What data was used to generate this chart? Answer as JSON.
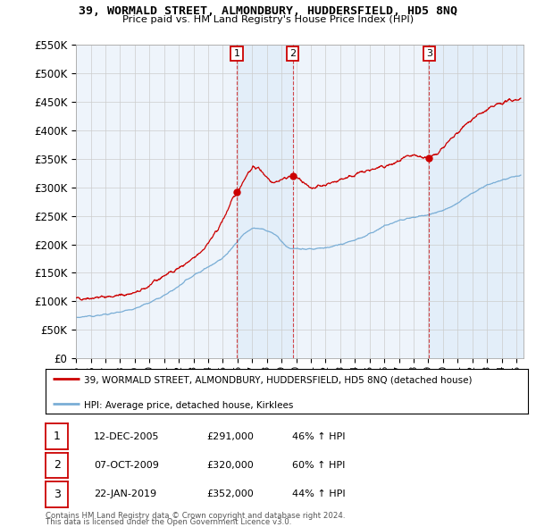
{
  "title": "39, WORMALD STREET, ALMONDBURY, HUDDERSFIELD, HD5 8NQ",
  "subtitle": "Price paid vs. HM Land Registry's House Price Index (HPI)",
  "background_color": "#ffffff",
  "plot_bg_color": "#eef4fb",
  "grid_color": "#cccccc",
  "red_color": "#cc0000",
  "blue_color": "#7aaed6",
  "ylim": [
    0,
    550000
  ],
  "yticks": [
    0,
    50000,
    100000,
    150000,
    200000,
    250000,
    300000,
    350000,
    400000,
    450000,
    500000,
    550000
  ],
  "ytick_labels": [
    "£0",
    "£50K",
    "£100K",
    "£150K",
    "£200K",
    "£250K",
    "£300K",
    "£350K",
    "£400K",
    "£450K",
    "£500K",
    "£550K"
  ],
  "xlim_start": 1995,
  "xlim_end": 2025.5,
  "sales": [
    {
      "num": 1,
      "date": "12-DEC-2005",
      "year": 2005.95,
      "price": 291000,
      "pct": "46%",
      "dir": "↑"
    },
    {
      "num": 2,
      "date": "07-OCT-2009",
      "year": 2009.77,
      "price": 320000,
      "pct": "60%",
      "dir": "↑"
    },
    {
      "num": 3,
      "date": "22-JAN-2019",
      "year": 2019.05,
      "price": 352000,
      "pct": "44%",
      "dir": "↑"
    }
  ],
  "legend_red": "39, WORMALD STREET, ALMONDBURY, HUDDERSFIELD, HD5 8NQ (detached house)",
  "legend_blue": "HPI: Average price, detached house, Kirklees",
  "footer1": "Contains HM Land Registry data © Crown copyright and database right 2024.",
  "footer2": "This data is licensed under the Open Government Licence v3.0."
}
